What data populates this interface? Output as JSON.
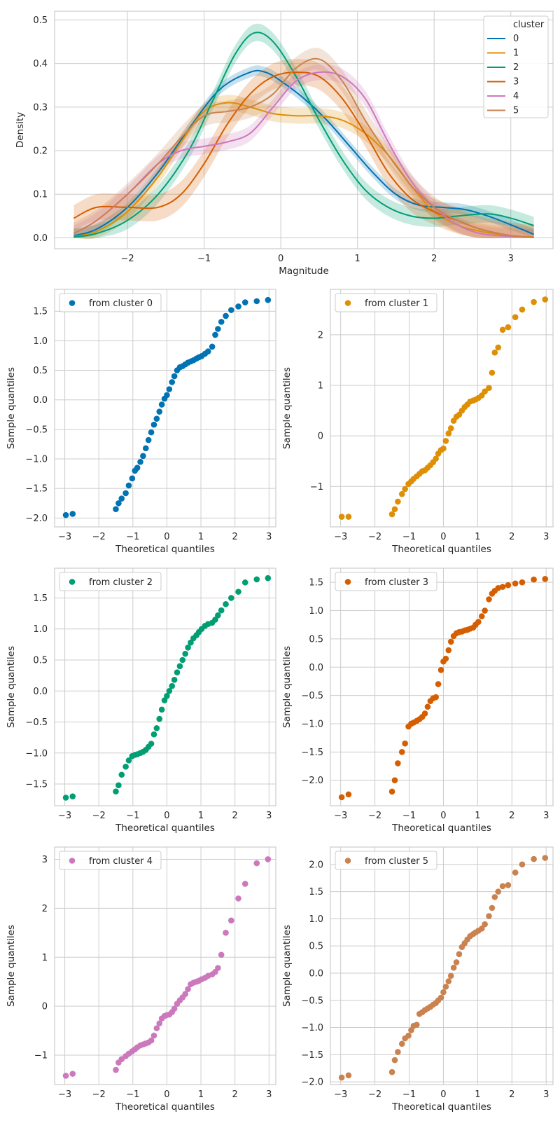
{
  "chart_data": [
    {
      "type": "line",
      "title": "",
      "xlabel": "Magnitude",
      "ylabel": "Density",
      "xlim": [
        -2.95,
        3.55
      ],
      "ylim": [
        -0.025,
        0.52
      ],
      "xticks": [
        -2,
        -1,
        0,
        1,
        2,
        3
      ],
      "yticks": [
        0.0,
        0.1,
        0.2,
        0.3,
        0.4,
        0.5
      ],
      "xtick_labels": [
        "−2",
        "−1",
        "0",
        "1",
        "2",
        "3"
      ],
      "ytick_labels": [
        "0.0",
        "0.1",
        "0.2",
        "0.3",
        "0.4",
        "0.5"
      ],
      "grid": true,
      "legend_title": "cluster",
      "legend_position": "top-right",
      "series": [
        {
          "name": "0",
          "color": "#0173b2",
          "x": [
            -2.7,
            -2.4,
            -2.0,
            -1.6,
            -1.2,
            -0.8,
            -0.4,
            -0.2,
            0.0,
            0.3,
            0.6,
            0.9,
            1.2,
            1.5,
            1.8,
            2.1,
            2.4,
            2.7,
            3.0,
            3.3
          ],
          "y": [
            0.005,
            0.02,
            0.07,
            0.15,
            0.25,
            0.34,
            0.38,
            0.38,
            0.36,
            0.32,
            0.27,
            0.21,
            0.15,
            0.1,
            0.075,
            0.07,
            0.065,
            0.05,
            0.03,
            0.008
          ],
          "band": 0.012
        },
        {
          "name": "1",
          "color": "#de8f05",
          "x": [
            -2.7,
            -2.4,
            -2.0,
            -1.6,
            -1.3,
            -1.0,
            -0.7,
            -0.4,
            -0.1,
            0.2,
            0.5,
            0.8,
            1.1,
            1.4,
            1.7,
            2.0,
            2.3,
            2.6,
            3.0,
            3.3
          ],
          "y": [
            0.003,
            0.015,
            0.06,
            0.14,
            0.22,
            0.29,
            0.31,
            0.3,
            0.285,
            0.28,
            0.28,
            0.27,
            0.24,
            0.19,
            0.12,
            0.06,
            0.03,
            0.015,
            0.005,
            0.002
          ],
          "band": 0.018
        },
        {
          "name": "2",
          "color": "#029e73",
          "x": [
            -2.7,
            -2.4,
            -2.0,
            -1.6,
            -1.2,
            -0.9,
            -0.6,
            -0.35,
            -0.1,
            0.2,
            0.5,
            0.8,
            1.1,
            1.4,
            1.7,
            2.0,
            2.3,
            2.7,
            3.0,
            3.3
          ],
          "y": [
            0.002,
            0.01,
            0.04,
            0.1,
            0.2,
            0.31,
            0.42,
            0.47,
            0.45,
            0.37,
            0.27,
            0.18,
            0.11,
            0.07,
            0.05,
            0.045,
            0.05,
            0.055,
            0.045,
            0.028
          ],
          "band": 0.02
        },
        {
          "name": "3",
          "color": "#d55e00",
          "x": [
            -2.7,
            -2.4,
            -2.0,
            -1.6,
            -1.3,
            -1.0,
            -0.7,
            -0.4,
            -0.1,
            0.2,
            0.5,
            0.8,
            1.1,
            1.4,
            1.7,
            2.0,
            2.3,
            2.6,
            3.0,
            3.3
          ],
          "y": [
            0.045,
            0.07,
            0.07,
            0.07,
            0.1,
            0.17,
            0.26,
            0.33,
            0.37,
            0.38,
            0.37,
            0.32,
            0.24,
            0.15,
            0.09,
            0.06,
            0.04,
            0.02,
            0.005,
            0.001
          ],
          "band": 0.03
        },
        {
          "name": "4",
          "color": "#cc78bc",
          "x": [
            -2.7,
            -2.4,
            -2.0,
            -1.6,
            -1.3,
            -1.0,
            -0.7,
            -0.4,
            -0.1,
            0.2,
            0.5,
            0.8,
            1.1,
            1.4,
            1.7,
            2.0,
            2.3,
            2.6,
            3.0,
            3.3
          ],
          "y": [
            0.01,
            0.04,
            0.1,
            0.17,
            0.2,
            0.21,
            0.22,
            0.24,
            0.3,
            0.36,
            0.38,
            0.37,
            0.32,
            0.22,
            0.13,
            0.07,
            0.03,
            0.01,
            0.003,
            0.001
          ],
          "band": 0.018
        },
        {
          "name": "5",
          "color": "#ca8250",
          "x": [
            -2.7,
            -2.4,
            -2.0,
            -1.6,
            -1.3,
            -1.0,
            -0.7,
            -0.4,
            -0.1,
            0.2,
            0.5,
            0.8,
            1.1,
            1.4,
            1.7,
            2.0,
            2.3,
            2.6,
            3.0,
            3.3
          ],
          "y": [
            0.01,
            0.04,
            0.1,
            0.17,
            0.23,
            0.28,
            0.29,
            0.3,
            0.33,
            0.39,
            0.41,
            0.36,
            0.27,
            0.19,
            0.12,
            0.07,
            0.04,
            0.02,
            0.005,
            0.001
          ],
          "band": 0.025
        }
      ]
    },
    {
      "type": "scatter",
      "legend": "from cluster 0",
      "legend_position": "top-left",
      "color": "#0173b2",
      "xlabel": "Theoretical quantiles",
      "ylabel": "Sample quantiles",
      "xlim": [
        -3.3,
        3.2
      ],
      "ylim": [
        -2.15,
        1.87
      ],
      "xticks": [
        -3,
        -2,
        -1,
        0,
        1,
        2,
        3
      ],
      "yticks": [
        -2.0,
        -1.5,
        -1.0,
        -0.5,
        0.0,
        0.5,
        1.0,
        1.5
      ],
      "xtick_labels": [
        "−3",
        "−2",
        "−1",
        "0",
        "1",
        "2",
        "3"
      ],
      "ytick_labels": [
        "−2.0",
        "−1.5",
        "−1.0",
        "−0.5",
        "0.0",
        "0.5",
        "1.0",
        "1.5"
      ],
      "grid": true,
      "x": [
        -2.97,
        -2.77,
        -1.5,
        -1.42,
        -1.33,
        -1.21,
        -1.12,
        -1.02,
        -0.94,
        -0.87,
        -0.78,
        -0.7,
        -0.62,
        -0.54,
        -0.46,
        -0.38,
        -0.3,
        -0.22,
        -0.15,
        -0.07,
        0.0,
        0.07,
        0.15,
        0.22,
        0.3,
        0.38,
        0.46,
        0.54,
        0.62,
        0.7,
        0.78,
        0.87,
        0.94,
        1.02,
        1.12,
        1.21,
        1.33,
        1.42,
        1.5,
        1.6,
        1.73,
        1.89,
        2.1,
        2.3,
        2.64,
        2.97
      ],
      "y": [
        -1.95,
        -1.93,
        -1.85,
        -1.75,
        -1.67,
        -1.58,
        -1.45,
        -1.33,
        -1.2,
        -1.15,
        -1.05,
        -0.95,
        -0.82,
        -0.68,
        -0.55,
        -0.42,
        -0.32,
        -0.2,
        -0.08,
        0.02,
        0.08,
        0.18,
        0.3,
        0.4,
        0.5,
        0.55,
        0.57,
        0.6,
        0.63,
        0.65,
        0.67,
        0.7,
        0.72,
        0.74,
        0.78,
        0.82,
        0.9,
        1.1,
        1.2,
        1.32,
        1.42,
        1.52,
        1.58,
        1.65,
        1.67,
        1.69
      ]
    },
    {
      "type": "scatter",
      "legend": "from cluster 1",
      "legend_position": "top-left",
      "color": "#de8f05",
      "xlabel": "Theoretical quantiles",
      "ylabel": "Sample quantiles",
      "xlim": [
        -3.3,
        3.2
      ],
      "ylim": [
        -1.8,
        2.9
      ],
      "xticks": [
        -3,
        -2,
        -1,
        0,
        1,
        2,
        3
      ],
      "yticks": [
        -1,
        0,
        1,
        2
      ],
      "xtick_labels": [
        "−3",
        "−2",
        "−1",
        "0",
        "1",
        "2",
        "3"
      ],
      "ytick_labels": [
        "−1",
        "0",
        "1",
        "2"
      ],
      "grid": true,
      "x": [
        -2.97,
        -2.77,
        -1.5,
        -1.42,
        -1.33,
        -1.21,
        -1.12,
        -1.02,
        -0.94,
        -0.87,
        -0.78,
        -0.7,
        -0.62,
        -0.54,
        -0.46,
        -0.38,
        -0.3,
        -0.22,
        -0.15,
        -0.07,
        0.0,
        0.07,
        0.15,
        0.22,
        0.3,
        0.38,
        0.46,
        0.54,
        0.62,
        0.7,
        0.78,
        0.87,
        0.94,
        1.02,
        1.12,
        1.21,
        1.33,
        1.42,
        1.5,
        1.6,
        1.73,
        1.89,
        2.1,
        2.3,
        2.64,
        2.97
      ],
      "y": [
        -1.6,
        -1.6,
        -1.55,
        -1.45,
        -1.3,
        -1.15,
        -1.05,
        -0.95,
        -0.9,
        -0.85,
        -0.8,
        -0.75,
        -0.7,
        -0.68,
        -0.63,
        -0.58,
        -0.52,
        -0.45,
        -0.35,
        -0.28,
        -0.25,
        -0.1,
        0.05,
        0.15,
        0.3,
        0.38,
        0.42,
        0.5,
        0.57,
        0.62,
        0.68,
        0.7,
        0.72,
        0.75,
        0.8,
        0.88,
        0.95,
        1.25,
        1.65,
        1.75,
        2.1,
        2.15,
        2.35,
        2.5,
        2.65,
        2.7
      ]
    },
    {
      "type": "scatter",
      "legend": "from cluster 2",
      "legend_position": "top-left",
      "color": "#029e73",
      "xlabel": "Theoretical quantiles",
      "ylabel": "Sample quantiles",
      "xlim": [
        -3.3,
        3.2
      ],
      "ylim": [
        -1.85,
        1.98
      ],
      "xticks": [
        -3,
        -2,
        -1,
        0,
        1,
        2,
        3
      ],
      "yticks": [
        -1.5,
        -1.0,
        -0.5,
        0.0,
        0.5,
        1.0,
        1.5
      ],
      "xtick_labels": [
        "−3",
        "−2",
        "−1",
        "0",
        "1",
        "2",
        "3"
      ],
      "ytick_labels": [
        "−1.5",
        "−1.0",
        "−0.5",
        "0.0",
        "0.5",
        "1.0",
        "1.5"
      ],
      "grid": true,
      "x": [
        -2.97,
        -2.77,
        -1.5,
        -1.42,
        -1.33,
        -1.21,
        -1.12,
        -1.02,
        -0.94,
        -0.87,
        -0.78,
        -0.7,
        -0.62,
        -0.54,
        -0.46,
        -0.38,
        -0.3,
        -0.22,
        -0.15,
        -0.07,
        0.0,
        0.07,
        0.15,
        0.22,
        0.3,
        0.38,
        0.46,
        0.54,
        0.62,
        0.7,
        0.78,
        0.87,
        0.94,
        1.02,
        1.12,
        1.21,
        1.33,
        1.42,
        1.5,
        1.6,
        1.73,
        1.89,
        2.1,
        2.3,
        2.64,
        2.97
      ],
      "y": [
        -1.72,
        -1.7,
        -1.62,
        -1.52,
        -1.35,
        -1.22,
        -1.12,
        -1.05,
        -1.03,
        -1.02,
        -1.0,
        -0.98,
        -0.95,
        -0.9,
        -0.85,
        -0.7,
        -0.6,
        -0.45,
        -0.3,
        -0.15,
        -0.08,
        0.0,
        0.08,
        0.18,
        0.3,
        0.4,
        0.5,
        0.6,
        0.7,
        0.78,
        0.85,
        0.9,
        0.95,
        1.0,
        1.05,
        1.08,
        1.1,
        1.15,
        1.22,
        1.3,
        1.4,
        1.5,
        1.6,
        1.75,
        1.8,
        1.82
      ]
    },
    {
      "type": "scatter",
      "legend": "from cluster 3",
      "legend_position": "top-left",
      "color": "#d55e00",
      "xlabel": "Theoretical quantiles",
      "ylabel": "Sample quantiles",
      "xlim": [
        -3.3,
        3.2
      ],
      "ylim": [
        -2.45,
        1.75
      ],
      "xticks": [
        -3,
        -2,
        -1,
        0,
        1,
        2,
        3
      ],
      "yticks": [
        -2.0,
        -1.5,
        -1.0,
        -0.5,
        0.0,
        0.5,
        1.0,
        1.5
      ],
      "xtick_labels": [
        "−3",
        "−2",
        "−1",
        "0",
        "1",
        "2",
        "3"
      ],
      "ytick_labels": [
        "−2.0",
        "−1.5",
        "−1.0",
        "−0.5",
        "0.0",
        "0.5",
        "1.0",
        "1.5"
      ],
      "grid": true,
      "x": [
        -2.97,
        -2.77,
        -1.5,
        -1.42,
        -1.33,
        -1.21,
        -1.12,
        -1.02,
        -0.94,
        -0.87,
        -0.78,
        -0.7,
        -0.62,
        -0.54,
        -0.46,
        -0.38,
        -0.3,
        -0.22,
        -0.15,
        -0.07,
        0.0,
        0.07,
        0.15,
        0.22,
        0.3,
        0.38,
        0.46,
        0.54,
        0.62,
        0.7,
        0.78,
        0.87,
        0.94,
        1.02,
        1.12,
        1.21,
        1.33,
        1.42,
        1.5,
        1.6,
        1.73,
        1.89,
        2.1,
        2.3,
        2.64,
        2.97
      ],
      "y": [
        -2.3,
        -2.25,
        -2.2,
        -2.0,
        -1.7,
        -1.5,
        -1.35,
        -1.05,
        -1.0,
        -0.98,
        -0.95,
        -0.92,
        -0.88,
        -0.82,
        -0.7,
        -0.6,
        -0.55,
        -0.53,
        -0.3,
        -0.05,
        0.1,
        0.15,
        0.3,
        0.45,
        0.55,
        0.6,
        0.62,
        0.63,
        0.65,
        0.66,
        0.68,
        0.7,
        0.75,
        0.8,
        0.9,
        1.0,
        1.2,
        1.3,
        1.35,
        1.4,
        1.42,
        1.45,
        1.48,
        1.5,
        1.55,
        1.56
      ]
    },
    {
      "type": "scatter",
      "legend": "from cluster 4",
      "legend_position": "top-left",
      "color": "#cc78bc",
      "xlabel": "Theoretical quantiles",
      "ylabel": "Sample quantiles",
      "xlim": [
        -3.3,
        3.2
      ],
      "ylim": [
        -1.6,
        3.25
      ],
      "xticks": [
        -3,
        -2,
        -1,
        0,
        1,
        2,
        3
      ],
      "yticks": [
        -1,
        0,
        1,
        2,
        3
      ],
      "xtick_labels": [
        "−3",
        "−2",
        "−1",
        "0",
        "1",
        "2",
        "3"
      ],
      "ytick_labels": [
        "−1",
        "0",
        "1",
        "2",
        "3"
      ],
      "grid": true,
      "x": [
        -2.97,
        -2.77,
        -1.5,
        -1.42,
        -1.33,
        -1.21,
        -1.12,
        -1.02,
        -0.94,
        -0.87,
        -0.78,
        -0.7,
        -0.62,
        -0.54,
        -0.46,
        -0.38,
        -0.3,
        -0.22,
        -0.15,
        -0.07,
        0.0,
        0.07,
        0.15,
        0.22,
        0.3,
        0.38,
        0.46,
        0.54,
        0.62,
        0.7,
        0.78,
        0.87,
        0.94,
        1.02,
        1.12,
        1.21,
        1.33,
        1.42,
        1.5,
        1.6,
        1.73,
        1.89,
        2.1,
        2.3,
        2.64,
        2.97
      ],
      "y": [
        -1.42,
        -1.38,
        -1.3,
        -1.15,
        -1.08,
        -1.02,
        -0.97,
        -0.92,
        -0.88,
        -0.84,
        -0.8,
        -0.78,
        -0.76,
        -0.74,
        -0.7,
        -0.6,
        -0.45,
        -0.35,
        -0.25,
        -0.2,
        -0.18,
        -0.17,
        -0.12,
        -0.05,
        0.05,
        0.12,
        0.18,
        0.25,
        0.35,
        0.45,
        0.48,
        0.5,
        0.52,
        0.55,
        0.58,
        0.62,
        0.65,
        0.7,
        0.78,
        1.05,
        1.5,
        1.75,
        2.2,
        2.5,
        2.92,
        3.0
      ]
    },
    {
      "type": "scatter",
      "legend": "from cluster 5",
      "legend_position": "top-left",
      "color": "#ca8250",
      "xlabel": "Theoretical quantiles",
      "ylabel": "Sample quantiles",
      "xlim": [
        -3.3,
        3.2
      ],
      "ylim": [
        -2.05,
        2.32
      ],
      "xticks": [
        -3,
        -2,
        -1,
        0,
        1,
        2,
        3
      ],
      "yticks": [
        -2.0,
        -1.5,
        -1.0,
        -0.5,
        0.0,
        0.5,
        1.0,
        1.5,
        2.0
      ],
      "xtick_labels": [
        "−3",
        "−2",
        "−1",
        "0",
        "1",
        "2",
        "3"
      ],
      "ytick_labels": [
        "−2.0",
        "−1.5",
        "−1.0",
        "−0.5",
        "0.0",
        "0.5",
        "1.0",
        "1.5",
        "2.0"
      ],
      "grid": true,
      "x": [
        -2.97,
        -2.77,
        -1.5,
        -1.42,
        -1.33,
        -1.21,
        -1.12,
        -1.02,
        -0.94,
        -0.87,
        -0.78,
        -0.7,
        -0.62,
        -0.54,
        -0.46,
        -0.38,
        -0.3,
        -0.22,
        -0.15,
        -0.07,
        0.0,
        0.07,
        0.15,
        0.22,
        0.3,
        0.38,
        0.46,
        0.54,
        0.62,
        0.7,
        0.78,
        0.87,
        0.94,
        1.02,
        1.12,
        1.21,
        1.33,
        1.42,
        1.5,
        1.6,
        1.73,
        1.89,
        2.1,
        2.3,
        2.64,
        2.97
      ],
      "y": [
        -1.92,
        -1.88,
        -1.82,
        -1.6,
        -1.45,
        -1.3,
        -1.2,
        -1.15,
        -1.05,
        -0.97,
        -0.95,
        -0.75,
        -0.72,
        -0.68,
        -0.65,
        -0.62,
        -0.58,
        -0.55,
        -0.5,
        -0.45,
        -0.35,
        -0.25,
        -0.15,
        -0.05,
        0.1,
        0.2,
        0.35,
        0.48,
        0.55,
        0.62,
        0.68,
        0.72,
        0.75,
        0.78,
        0.82,
        0.9,
        1.05,
        1.2,
        1.4,
        1.5,
        1.6,
        1.62,
        1.85,
        2.0,
        2.1,
        2.12
      ]
    }
  ]
}
